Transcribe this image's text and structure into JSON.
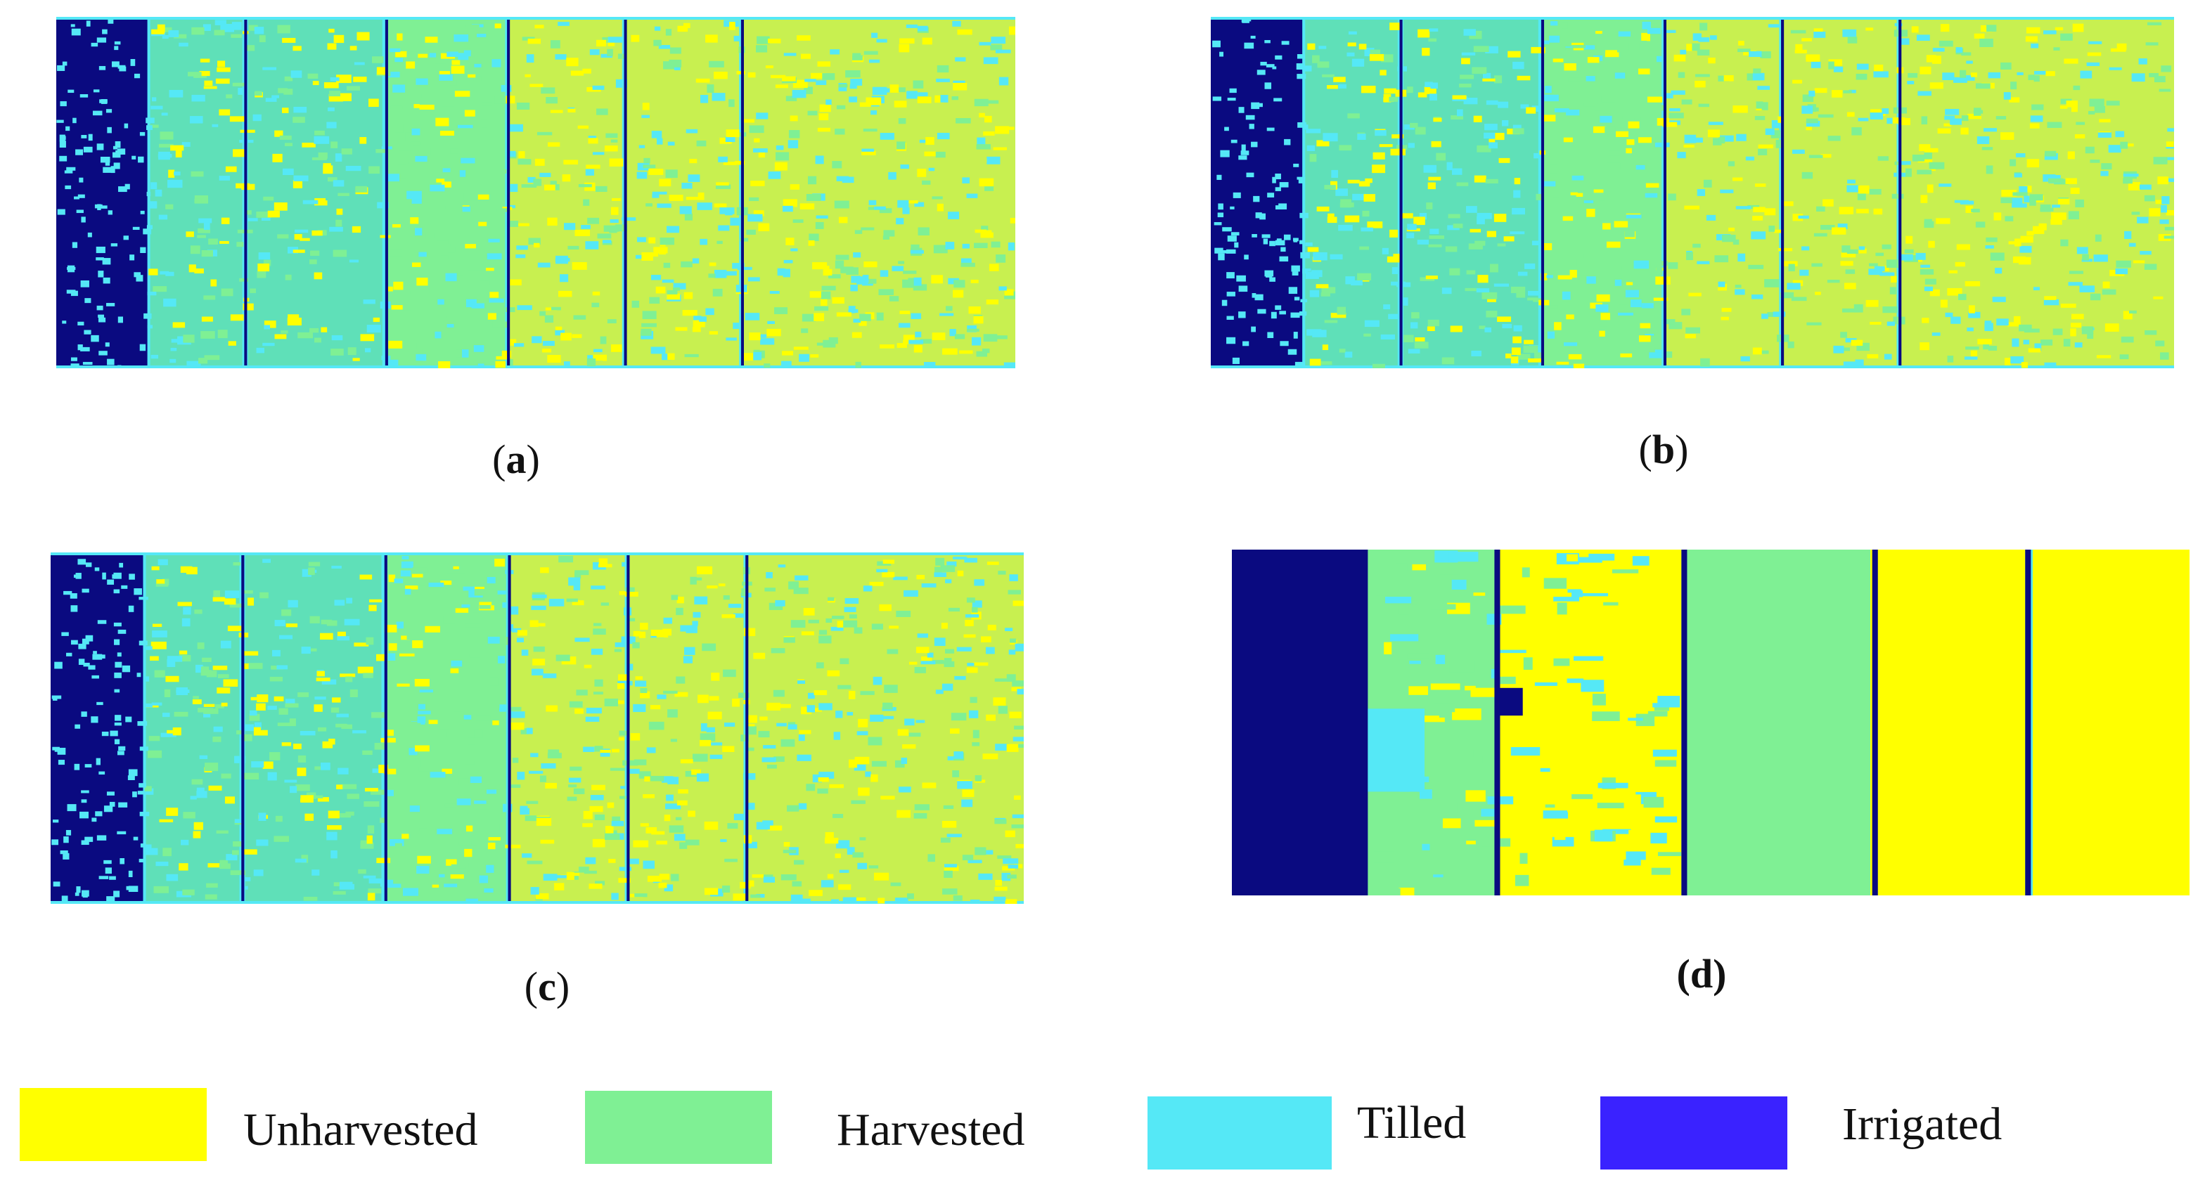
{
  "colors": {
    "unharvested": "#ffff00",
    "harvested": "#7ff094",
    "tilled": "#55e8f6",
    "irrigated": "#3a22ff",
    "irrigated_map": "#0a0a80",
    "mixed_yellow_green": "#c8f050",
    "mixed_cyan_green": "#5fe0b8"
  },
  "panels": [
    {
      "id": "a",
      "letter": "a",
      "style": "noisy"
    },
    {
      "id": "b",
      "letter": "b",
      "style": "noisy"
    },
    {
      "id": "c",
      "letter": "c",
      "style": "noisy"
    },
    {
      "id": "d",
      "letter": "d",
      "style": "clean"
    }
  ],
  "captions": {
    "open": "(",
    "close": ")",
    "a": "a",
    "b": "b",
    "c": "c",
    "d": "d"
  },
  "legend": {
    "unharvested": "Unharvested",
    "harvested": "Harvested",
    "tilled": "Tilled",
    "irrigated": "Irrigated"
  }
}
